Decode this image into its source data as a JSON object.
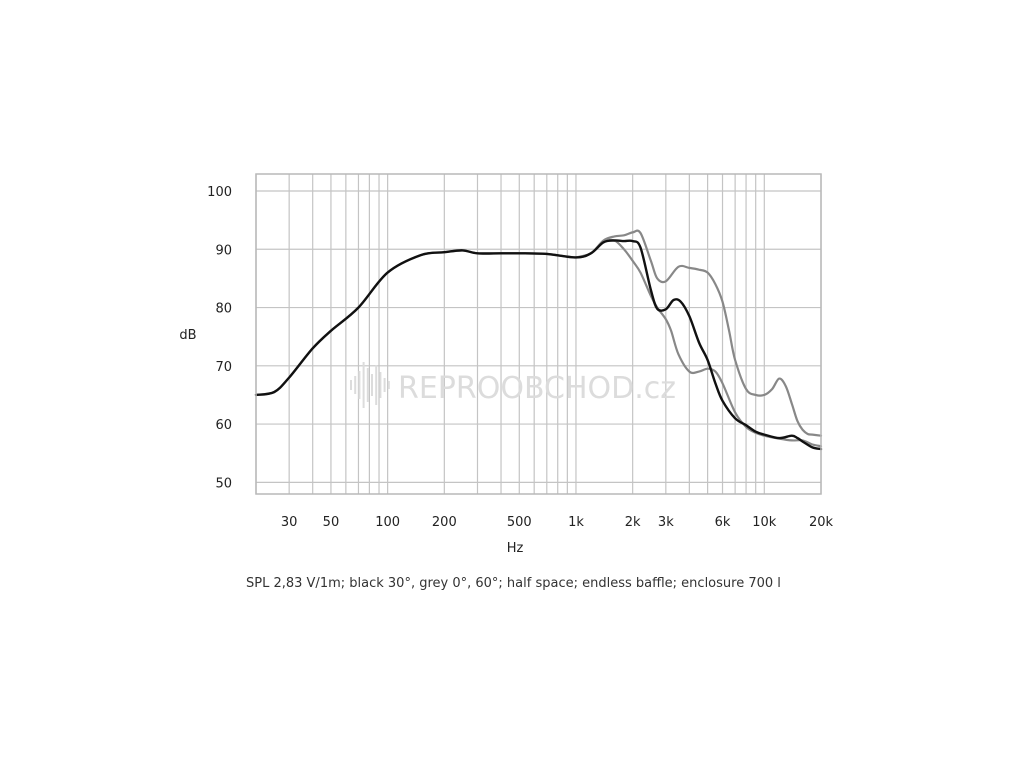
{
  "chart_data": {
    "type": "line",
    "x_scale": "log",
    "xlim": [
      20,
      20000
    ],
    "ylim": [
      50,
      100
    ],
    "grid": true,
    "xlabel": "Hz",
    "ylabel": "dB",
    "caption": "SPL 2,83 V/1m; black 30°, grey 0°, 60°; half space; endless baffle; enclosure 700 l",
    "x_ticks": [
      {
        "value": 30,
        "label": "30"
      },
      {
        "value": 50,
        "label": "50"
      },
      {
        "value": 100,
        "label": "100"
      },
      {
        "value": 200,
        "label": "200"
      },
      {
        "value": 500,
        "label": "500"
      },
      {
        "value": 1000,
        "label": "1k"
      },
      {
        "value": 2000,
        "label": "2k"
      },
      {
        "value": 3000,
        "label": "3k"
      },
      {
        "value": 6000,
        "label": "6k"
      },
      {
        "value": 10000,
        "label": "10k"
      },
      {
        "value": 20000,
        "label": "20k"
      }
    ],
    "y_ticks": [
      {
        "value": 50,
        "label": "50"
      },
      {
        "value": 60,
        "label": "60"
      },
      {
        "value": 70,
        "label": "70"
      },
      {
        "value": 80,
        "label": "80"
      },
      {
        "value": 90,
        "label": "90"
      },
      {
        "value": 100,
        "label": "100"
      }
    ],
    "series": [
      {
        "color": "#888888",
        "x": [
          20,
          25,
          30,
          40,
          50,
          70,
          100,
          150,
          200,
          250,
          300,
          400,
          500,
          700,
          1000,
          1200,
          1400,
          1600,
          1800,
          2000,
          2200,
          2500,
          2700,
          3000,
          3500,
          4000,
          4500,
          5000,
          5500,
          6000,
          6500,
          7000,
          8000,
          9000,
          10000,
          11000,
          12000,
          13000,
          14000,
          15000,
          16000,
          17000,
          18000,
          20000
        ],
        "y": [
          65,
          65.5,
          68,
          73,
          76,
          80,
          86,
          89,
          89.5,
          89.8,
          89.3,
          89.3,
          89.3,
          89.2,
          88.6,
          89.3,
          91.5,
          92.2,
          92.4,
          92.9,
          92.8,
          88,
          85,
          84.5,
          87,
          86.8,
          86.5,
          86,
          84,
          81,
          76,
          71,
          66,
          65,
          65,
          66,
          67.8,
          66.5,
          63.5,
          60.5,
          59,
          58.3,
          58.2,
          58
        ]
      },
      {
        "color": "#888888",
        "x": [
          1000,
          1200,
          1400,
          1600,
          1800,
          2000,
          2200,
          2500,
          2700,
          3000,
          3200,
          3500,
          4000,
          4500,
          5000,
          5500,
          6000,
          7000,
          8000,
          9000,
          10000,
          12000,
          14000,
          16000,
          18000,
          20000
        ],
        "y": [
          88.6,
          89.3,
          91.2,
          91.5,
          90,
          88,
          86,
          82,
          80,
          78,
          76,
          72,
          69,
          69,
          69.5,
          69,
          67,
          62,
          59.5,
          58.5,
          58,
          57.5,
          57.2,
          57.2,
          56.5,
          56.2
        ]
      },
      {
        "color": "#111111",
        "x": [
          20,
          25,
          30,
          40,
          50,
          70,
          100,
          150,
          200,
          250,
          300,
          400,
          500,
          700,
          1000,
          1200,
          1400,
          1600,
          1800,
          2000,
          2200,
          2500,
          2700,
          3000,
          3300,
          3600,
          4000,
          4500,
          5000,
          5500,
          6000,
          7000,
          8000,
          9000,
          10000,
          12000,
          14000,
          15000,
          16000,
          18000,
          20000
        ],
        "y": [
          65,
          65.5,
          68,
          73,
          76,
          80,
          86,
          89,
          89.5,
          89.8,
          89.3,
          89.3,
          89.3,
          89.2,
          88.6,
          89.3,
          91.2,
          91.5,
          91.4,
          91.4,
          90.3,
          83,
          79.8,
          79.7,
          81.3,
          81,
          78.5,
          74,
          71,
          67,
          64,
          61,
          59.8,
          58.7,
          58.2,
          57.6,
          58,
          57.6,
          57,
          56,
          55.7
        ]
      }
    ]
  },
  "watermark": {
    "text": "REPROOBCHOD.cz"
  }
}
